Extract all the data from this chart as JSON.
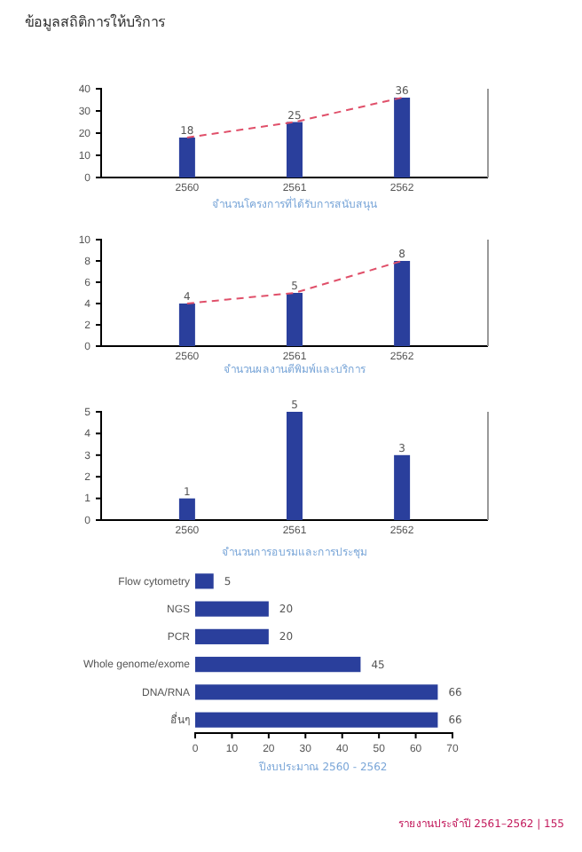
{
  "chart_data": [
    {
      "type": "bar",
      "title": "ข้อมูลสถิติการให้บริการ",
      "xlabel": "จำนวนโครงการที่ได้รับการสนับสนุน",
      "categories": [
        "2560",
        "2561",
        "2562"
      ],
      "ylim": [
        0,
        40
      ],
      "yticks": [
        0,
        10,
        20,
        30,
        40
      ],
      "data_labels": true,
      "grid": false,
      "series": [
        {
          "color": "#2a3f9c",
          "values": [
            18,
            25,
            36
          ]
        },
        {
          "type": "line",
          "color": "#e0506a",
          "line_style": "dashed",
          "marker": "none",
          "values": [
            18,
            25,
            36
          ],
          "value_labels": [
            null,
            null,
            null
          ]
        }
      ]
    },
    {
      "type": "bar",
      "xlabel": "จำนวนผลงานตีพิมพ์และบริการ",
      "categories": [
        "2560",
        "2561",
        "2562"
      ],
      "ylim": [
        0,
        10
      ],
      "yticks": [
        0,
        2,
        4,
        6,
        8,
        10
      ],
      "data_labels": true,
      "grid": false,
      "series": [
        {
          "color": "#2a3f9c",
          "values": [
            4,
            5,
            8
          ]
        },
        {
          "type": "line",
          "color": "#e0506a",
          "line_style": "dashed",
          "marker": "none",
          "values": [
            4,
            5,
            8
          ],
          "value_labels": [
            null,
            null,
            null
          ]
        }
      ]
    },
    {
      "type": "bar",
      "xlabel": "จำนวนการอบรมและการประชุม",
      "categories": [
        "2560",
        "2561",
        "2562"
      ],
      "ylim": [
        0,
        5
      ],
      "yticks": [
        0,
        1,
        2,
        3,
        4,
        5
      ],
      "data_labels": true,
      "grid": false,
      "series": [
        {
          "color": "#2a3f9c",
          "values": [
            1,
            5,
            3
          ]
        }
      ]
    },
    {
      "type": "bar",
      "orientation": "horizontal",
      "xlabel": "ปีงบประมาณ 2560 - 2562",
      "categories": [
        "Flow cytometry",
        "NGS",
        "PCR",
        "Whole genome/exome",
        "DNA/RNA",
        "อื่นๆ"
      ],
      "xlim": [
        0,
        70
      ],
      "xticks": [
        0,
        10,
        20,
        30,
        40,
        50,
        60,
        70
      ],
      "data_labels": true,
      "grid": false,
      "annotations": [
        "รายงานประจำปี 2561–2562 | 155"
      ],
      "series": [
        {
          "color": "#2a3f9c",
          "values": [
            5,
            20,
            20,
            45,
            66,
            66
          ]
        }
      ]
    }
  ]
}
